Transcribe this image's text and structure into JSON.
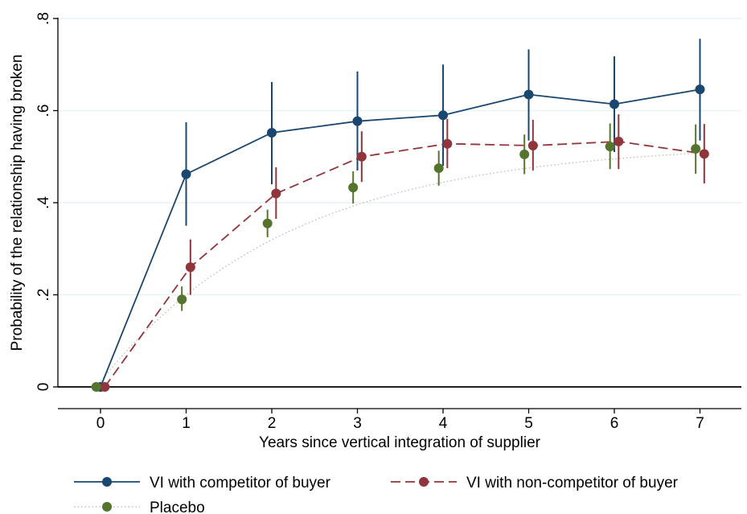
{
  "chart_data": {
    "type": "line",
    "xlabel": "Years since vertical integration of supplier",
    "ylabel": "Probability of the relationship having broken",
    "xlim": [
      -0.5,
      7.5
    ],
    "ylim": [
      0,
      0.8
    ],
    "x_ticks": [
      "0",
      "1",
      "2",
      "3",
      "4",
      "5",
      "6",
      "7"
    ],
    "y_ticks": [
      "0",
      ".2",
      ".4",
      ".6",
      ".8"
    ],
    "grid": "horizontal",
    "legend_position": "bottom",
    "series": [
      {
        "name": "VI with competitor of buyer",
        "color": "#1a476f",
        "line_style": "solid",
        "x": [
          0,
          1,
          2,
          3,
          4,
          5,
          6,
          7
        ],
        "y": [
          0,
          0.462,
          0.552,
          0.577,
          0.59,
          0.635,
          0.614,
          0.646
        ],
        "ci_low": [
          0,
          0.35,
          0.44,
          0.47,
          0.48,
          0.535,
          0.51,
          0.535
        ],
        "ci_high": [
          0,
          0.575,
          0.662,
          0.685,
          0.7,
          0.733,
          0.718,
          0.756
        ]
      },
      {
        "name": "VI with non-competitor of buyer",
        "color": "#90353b",
        "line_style": "dashed",
        "x": [
          0,
          1,
          2,
          3,
          4,
          5,
          6,
          7
        ],
        "y": [
          0,
          0.26,
          0.42,
          0.5,
          0.528,
          0.524,
          0.533,
          0.506
        ],
        "ci_low": [
          0,
          0.2,
          0.365,
          0.445,
          0.475,
          0.47,
          0.473,
          0.442
        ],
        "ci_high": [
          0,
          0.32,
          0.477,
          0.555,
          0.582,
          0.58,
          0.592,
          0.571
        ]
      },
      {
        "name": "Placebo",
        "color": "#55752f",
        "line_style": "dotted",
        "x": [
          0,
          1,
          2,
          3,
          4,
          5,
          6,
          7
        ],
        "y": [
          0,
          0.19,
          0.355,
          0.433,
          0.475,
          0.505,
          0.522,
          0.517
        ],
        "ci_low": [
          0,
          0.165,
          0.325,
          0.398,
          0.437,
          0.462,
          0.473,
          0.463
        ],
        "ci_high": [
          0,
          0.218,
          0.385,
          0.468,
          0.513,
          0.548,
          0.572,
          0.57
        ]
      }
    ],
    "fitted_curve_series": "Placebo"
  }
}
